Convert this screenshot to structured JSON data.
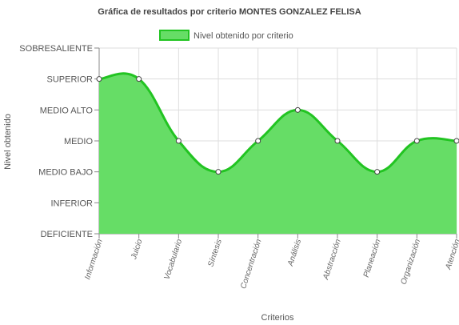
{
  "chart_data": {
    "type": "area",
    "title": "Gráfica de resultados por criterio MONTES GONZALEZ FELISA",
    "xlabel": "Criterios",
    "ylabel": "Nivel obtenido",
    "y_levels": [
      "DEFICIENTE",
      "INFERIOR",
      "MEDIO BAJO",
      "MEDIO",
      "MEDIO ALTO",
      "SUPERIOR",
      "SOBRESALIENTE"
    ],
    "ylim": [
      0,
      6
    ],
    "categories": [
      "Información",
      "Juicio",
      "Vocabulario",
      "Síntesis",
      "Concentración",
      "Análisis",
      "Abstracción",
      "Planeación",
      "Organización",
      "Atención"
    ],
    "series": [
      {
        "name": "Nivel obtenido por criterio",
        "values": [
          5,
          5,
          3,
          2,
          3,
          4,
          3,
          2,
          3,
          3
        ]
      }
    ],
    "legend_position": "top",
    "grid": true,
    "colors": {
      "fill": "#66dd66",
      "line": "#22c422",
      "point_fill": "#ffffff",
      "point_stroke": "#444444",
      "grid": "#dddddd",
      "axis": "#888888"
    }
  }
}
